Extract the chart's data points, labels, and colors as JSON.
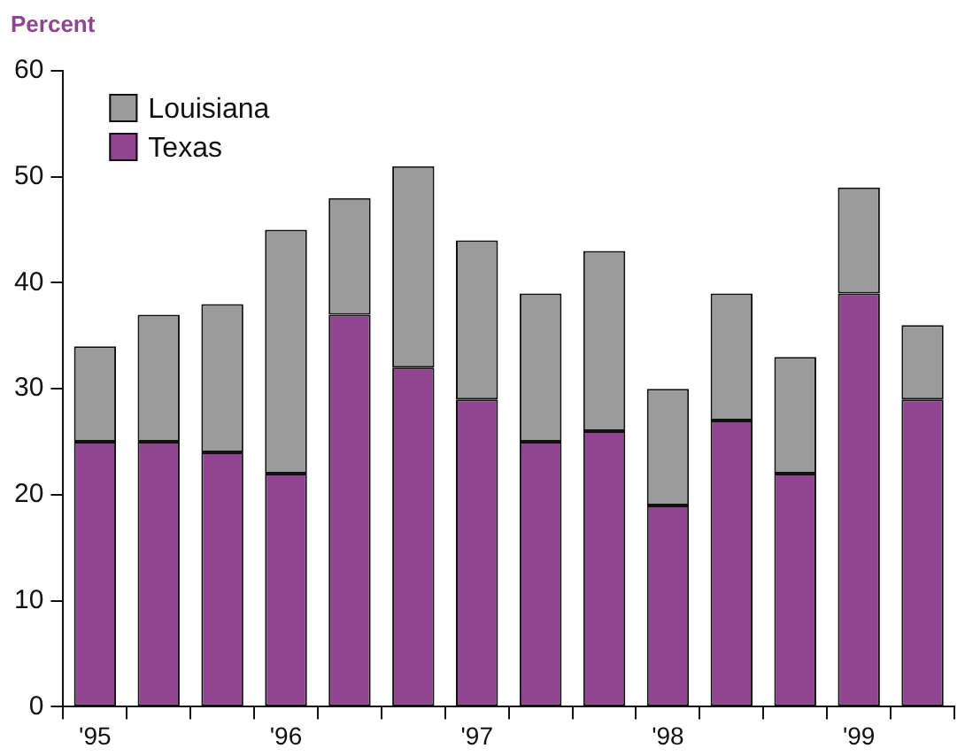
{
  "chart_data": {
    "type": "bar",
    "ylabel": "Percent",
    "stacked": true,
    "categories": [
      "'95",
      null,
      null,
      "'96",
      null,
      null,
      "'97",
      null,
      null,
      "'98",
      null,
      null,
      "'99",
      null
    ],
    "series": [
      {
        "name": "Texas",
        "color": "#8f4590",
        "values": [
          25,
          25,
          24,
          22,
          37,
          32,
          29,
          25,
          26,
          19,
          27,
          22,
          39,
          29
        ]
      },
      {
        "name": "Louisiana",
        "color": "#9b9b9b",
        "values": [
          9,
          12,
          14,
          23,
          11,
          19,
          15,
          14,
          17,
          11,
          12,
          11,
          10,
          7
        ]
      }
    ],
    "ylim": [
      0,
      60
    ],
    "yticks": [
      0,
      10,
      20,
      30,
      40,
      50,
      60
    ],
    "grid": false,
    "legend": "top left"
  }
}
